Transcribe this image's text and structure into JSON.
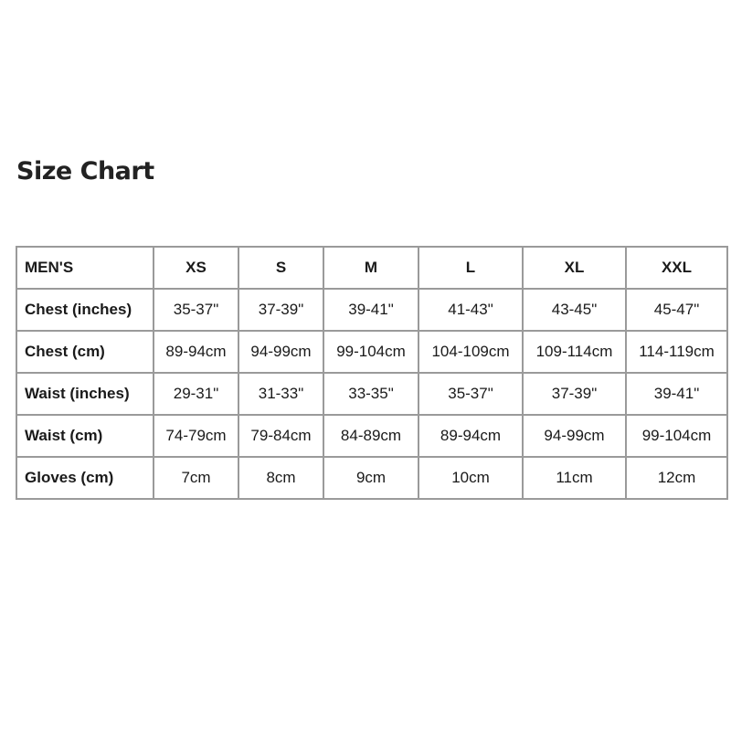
{
  "title": "Size Chart",
  "table": {
    "header": [
      "MEN'S",
      "XS",
      "S",
      "M",
      "L",
      "XL",
      "XXL"
    ],
    "rows": [
      [
        "Chest (inches)",
        "35-37\"",
        "37-39\"",
        "39-41\"",
        "41-43\"",
        "43-45\"",
        "45-47\""
      ],
      [
        "Chest (cm)",
        "89-94cm",
        "94-99cm",
        "99-104cm",
        "104-109cm",
        "109-114cm",
        "114-119cm"
      ],
      [
        "Waist (inches)",
        "29-31\"",
        "31-33\"",
        "33-35\"",
        "35-37\"",
        "37-39\"",
        "39-41\""
      ],
      [
        "Waist (cm)",
        "74-79cm",
        "79-84cm",
        "84-89cm",
        "89-94cm",
        "94-99cm",
        "99-104cm"
      ],
      [
        "Gloves (cm)",
        "7cm",
        "8cm",
        "9cm",
        "10cm",
        "11cm",
        "12cm"
      ]
    ]
  }
}
